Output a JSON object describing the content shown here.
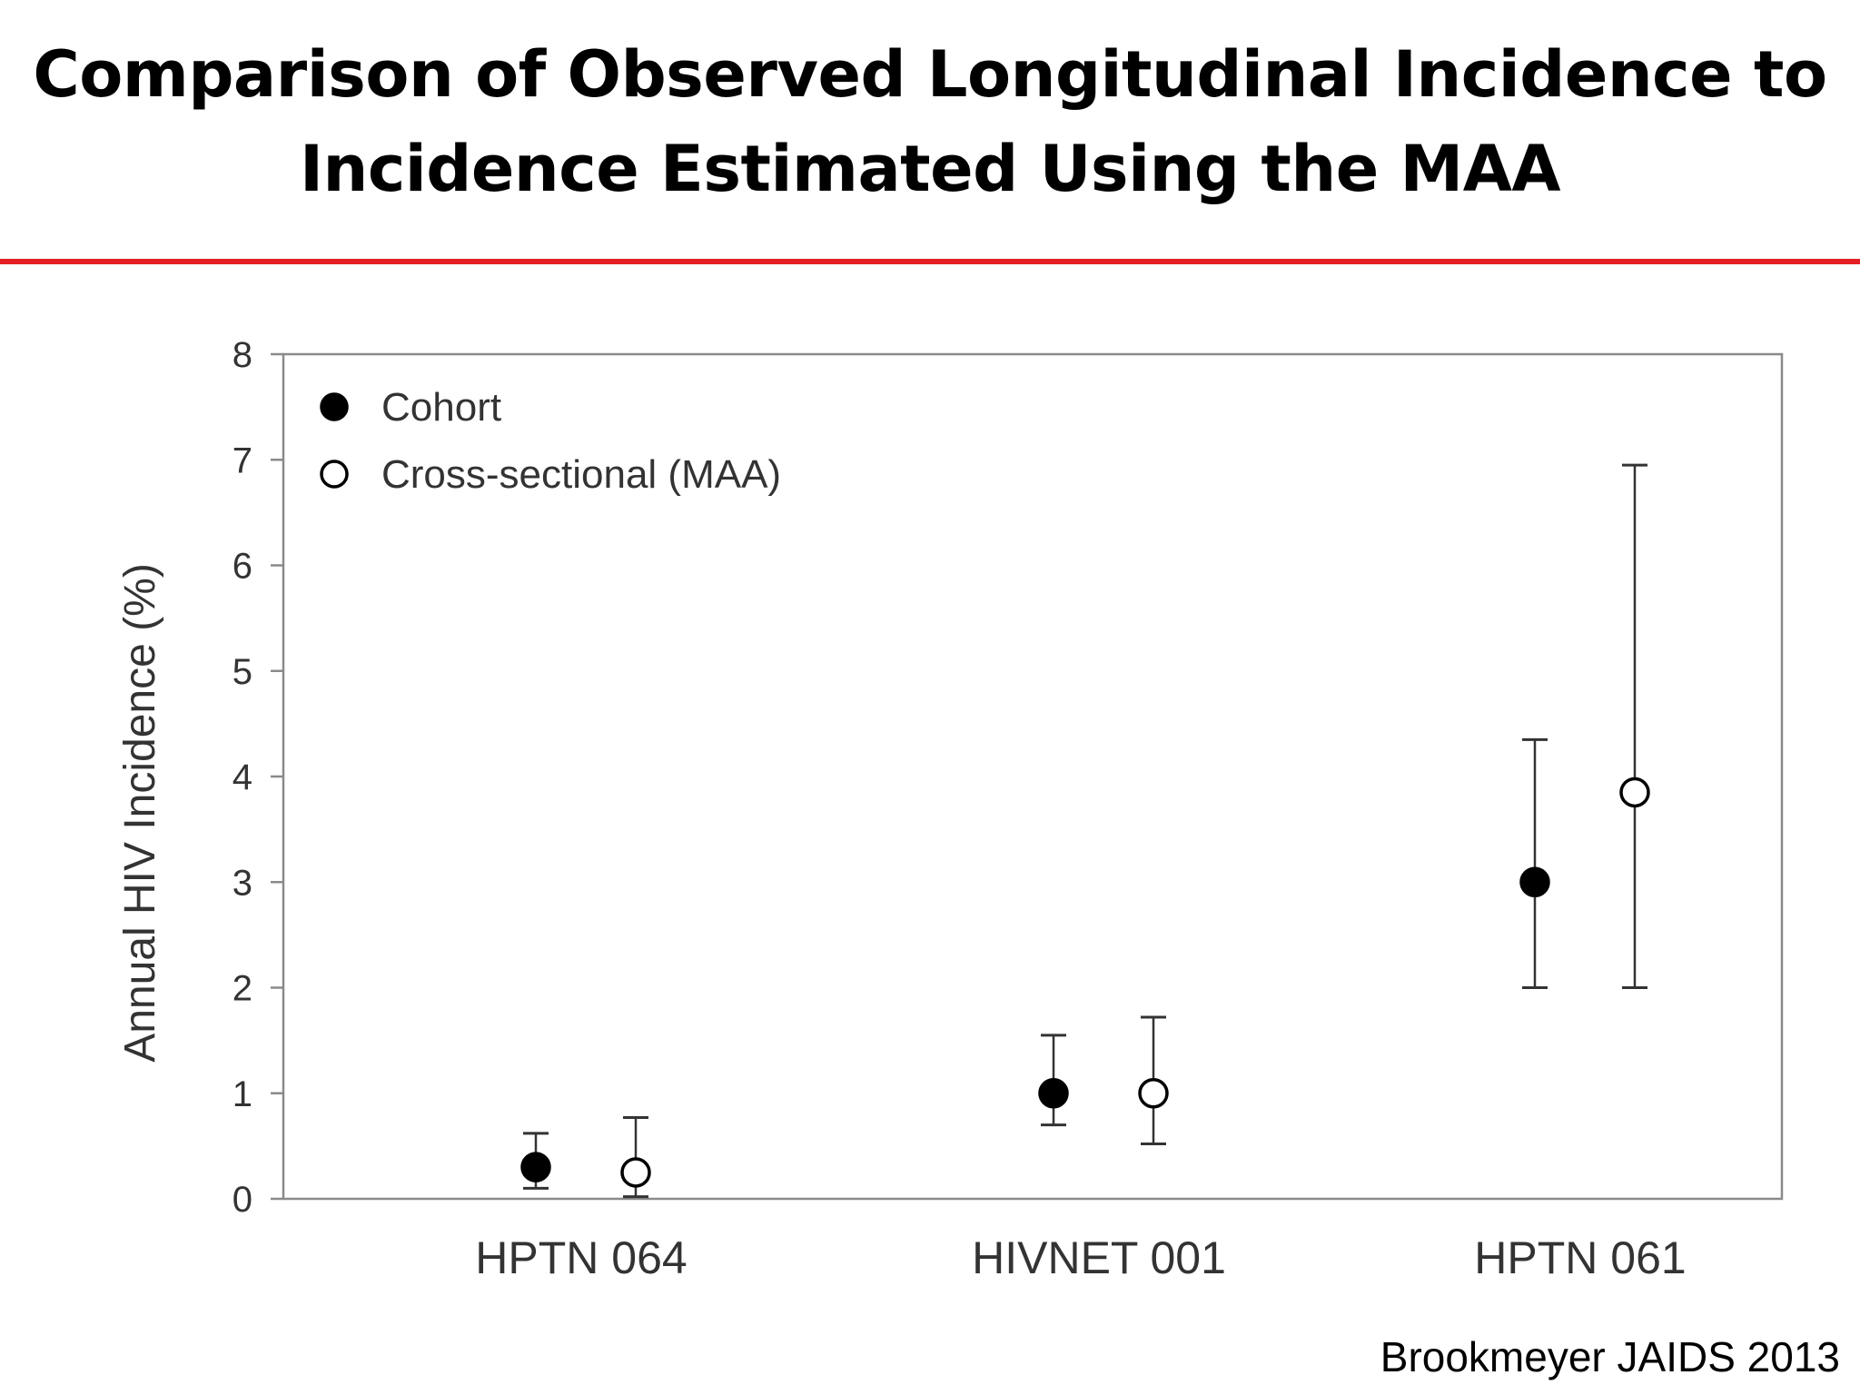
{
  "slide": {
    "title_line1": "Comparison of Observed Longitudinal Incidence to",
    "title_line2": "Incidence Estimated Using the MAA",
    "citation": "Brookmeyer JAIDS 2013",
    "accent_color": "#e31e24"
  },
  "chart_data": {
    "type": "scatter",
    "ylabel": "Annual HIV Incidence (%)",
    "ylim": [
      0,
      8
    ],
    "yticks": [
      "0",
      "1",
      "2",
      "3",
      "4",
      "5",
      "6",
      "7",
      "8"
    ],
    "categories": [
      "HPTN 064",
      "HIVNET 001",
      "HPTN 061"
    ],
    "grid": false,
    "legend_position": "top-left",
    "series": [
      {
        "name": "Cohort",
        "marker": "filled-circle",
        "values": [
          0.3,
          1.0,
          3.0
        ],
        "ci_low": [
          0.1,
          0.7,
          2.0
        ],
        "ci_high": [
          0.62,
          1.55,
          4.35
        ]
      },
      {
        "name": "Cross-sectional (MAA)",
        "marker": "open-circle",
        "values": [
          0.25,
          1.0,
          3.85
        ],
        "ci_low": [
          0.02,
          0.52,
          2.0
        ],
        "ci_high": [
          0.77,
          1.72,
          6.95
        ]
      }
    ]
  }
}
